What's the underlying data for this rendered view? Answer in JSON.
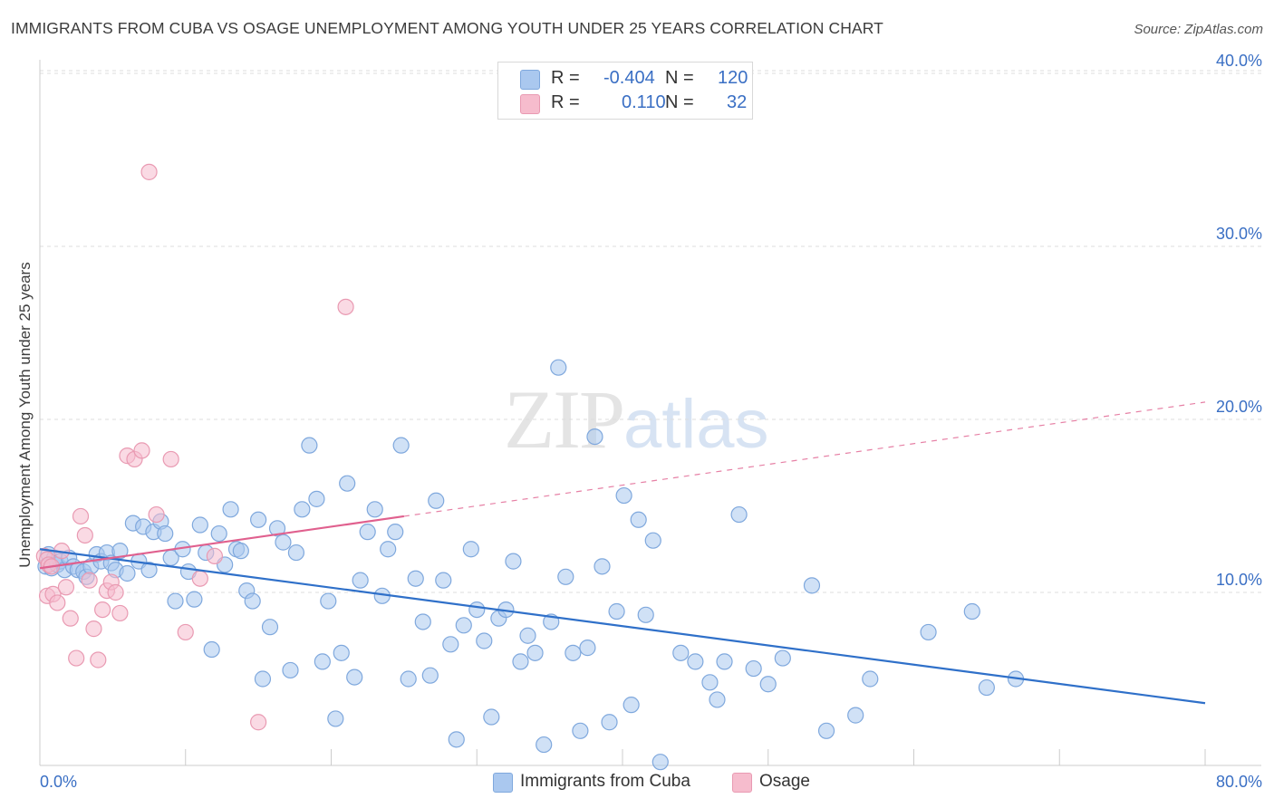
{
  "header": {
    "title": "IMMIGRANTS FROM CUBA VS OSAGE UNEMPLOYMENT AMONG YOUTH UNDER 25 YEARS CORRELATION CHART",
    "source": "Source: ZipAtlas.com"
  },
  "watermark": {
    "zip": "ZIP",
    "atlas": "atlas"
  },
  "legend": {
    "r_label": "R =",
    "n_label": "N =",
    "rows": [
      {
        "r": "-0.404",
        "n": "120"
      },
      {
        "r": "0.110",
        "n": "32"
      }
    ]
  },
  "chart_data": {
    "type": "scatter",
    "title": "IMMIGRANTS FROM CUBA VS OSAGE UNEMPLOYMENT AMONG YOUTH UNDER 25 YEARS CORRELATION CHART",
    "xlabel": "",
    "ylabel": "Unemployment Among Youth under 25 years",
    "xlim": [
      0,
      80
    ],
    "ylim": [
      0,
      42
    ],
    "x_tick_labels": [
      "0.0%",
      "80.0%"
    ],
    "y_ticks": [
      10,
      20,
      30,
      40
    ],
    "y_tick_labels": [
      "10.0%",
      "20.0%",
      "30.0%",
      "40.0%"
    ],
    "grid": true,
    "colors": {
      "cuba_fill": "#aac8ef",
      "cuba_stroke": "#7fa8dd",
      "cuba_line": "#2f70c9",
      "osage_fill": "#f6bccd",
      "osage_stroke": "#e99ab2",
      "osage_line": "#e0608e",
      "tick_label": "#3a6fc4"
    },
    "series": [
      {
        "name": "Immigrants from Cuba",
        "trend": {
          "x": [
            0,
            80
          ],
          "y": [
            12.5,
            3.6
          ],
          "dashed_from": null
        },
        "points": [
          [
            0.4,
            11.5
          ],
          [
            0.6,
            12.2
          ],
          [
            0.8,
            11.4
          ],
          [
            1.0,
            12.0
          ],
          [
            1.2,
            11.6
          ],
          [
            1.4,
            11.8
          ],
          [
            1.7,
            11.3
          ],
          [
            2.0,
            12.0
          ],
          [
            2.3,
            11.5
          ],
          [
            2.6,
            11.3
          ],
          [
            3.0,
            11.2
          ],
          [
            3.2,
            10.9
          ],
          [
            3.5,
            11.5
          ],
          [
            3.9,
            12.2
          ],
          [
            4.2,
            11.8
          ],
          [
            4.6,
            12.3
          ],
          [
            4.9,
            11.7
          ],
          [
            5.2,
            11.3
          ],
          [
            5.5,
            12.4
          ],
          [
            6.0,
            11.1
          ],
          [
            6.4,
            14.0
          ],
          [
            6.8,
            11.8
          ],
          [
            7.1,
            13.8
          ],
          [
            7.5,
            11.3
          ],
          [
            7.8,
            13.5
          ],
          [
            8.3,
            14.1
          ],
          [
            8.6,
            13.4
          ],
          [
            9.0,
            12.0
          ],
          [
            9.3,
            9.5
          ],
          [
            9.8,
            12.5
          ],
          [
            10.2,
            11.2
          ],
          [
            10.6,
            9.6
          ],
          [
            11.0,
            13.9
          ],
          [
            11.4,
            12.3
          ],
          [
            11.8,
            6.7
          ],
          [
            12.3,
            13.4
          ],
          [
            12.7,
            11.6
          ],
          [
            13.1,
            14.8
          ],
          [
            13.5,
            12.5
          ],
          [
            13.8,
            12.4
          ],
          [
            14.2,
            10.1
          ],
          [
            14.6,
            9.5
          ],
          [
            15.0,
            14.2
          ],
          [
            15.3,
            5.0
          ],
          [
            15.8,
            8.0
          ],
          [
            16.3,
            13.7
          ],
          [
            16.7,
            12.9
          ],
          [
            17.2,
            5.5
          ],
          [
            17.6,
            12.3
          ],
          [
            18.0,
            14.8
          ],
          [
            18.5,
            18.5
          ],
          [
            19.0,
            15.4
          ],
          [
            19.4,
            6.0
          ],
          [
            19.8,
            9.5
          ],
          [
            20.3,
            2.7
          ],
          [
            20.7,
            6.5
          ],
          [
            21.1,
            16.3
          ],
          [
            21.6,
            5.1
          ],
          [
            22.0,
            10.7
          ],
          [
            22.5,
            13.5
          ],
          [
            23.0,
            14.8
          ],
          [
            23.5,
            9.8
          ],
          [
            23.9,
            12.5
          ],
          [
            24.4,
            13.5
          ],
          [
            24.8,
            18.5
          ],
          [
            25.3,
            5.0
          ],
          [
            25.8,
            10.8
          ],
          [
            26.3,
            8.3
          ],
          [
            26.8,
            5.2
          ],
          [
            27.2,
            15.3
          ],
          [
            27.7,
            10.7
          ],
          [
            28.2,
            7.0
          ],
          [
            28.6,
            1.5
          ],
          [
            29.1,
            8.1
          ],
          [
            29.6,
            12.5
          ],
          [
            30.0,
            9.0
          ],
          [
            30.5,
            7.2
          ],
          [
            31.0,
            2.8
          ],
          [
            31.5,
            8.5
          ],
          [
            32.0,
            9.0
          ],
          [
            32.5,
            11.8
          ],
          [
            33.0,
            6.0
          ],
          [
            33.5,
            7.5
          ],
          [
            34.0,
            6.5
          ],
          [
            34.6,
            1.2
          ],
          [
            35.1,
            8.3
          ],
          [
            35.6,
            23.0
          ],
          [
            36.1,
            10.9
          ],
          [
            36.6,
            6.5
          ],
          [
            37.1,
            2.0
          ],
          [
            37.6,
            6.8
          ],
          [
            38.1,
            19.0
          ],
          [
            38.6,
            11.5
          ],
          [
            39.1,
            2.5
          ],
          [
            39.6,
            8.9
          ],
          [
            40.1,
            15.6
          ],
          [
            40.6,
            3.5
          ],
          [
            41.1,
            14.2
          ],
          [
            41.6,
            8.7
          ],
          [
            42.1,
            13.0
          ],
          [
            42.6,
            0.2
          ],
          [
            44.0,
            6.5
          ],
          [
            45.0,
            6.0
          ],
          [
            46.0,
            4.8
          ],
          [
            46.5,
            3.8
          ],
          [
            47.0,
            6.0
          ],
          [
            48.0,
            14.5
          ],
          [
            49.0,
            5.6
          ],
          [
            50.0,
            4.7
          ],
          [
            51.0,
            6.2
          ],
          [
            53.0,
            10.4
          ],
          [
            54.0,
            2.0
          ],
          [
            56.0,
            2.9
          ],
          [
            57.0,
            5.0
          ],
          [
            61.0,
            7.7
          ],
          [
            64.0,
            8.9
          ],
          [
            65.0,
            4.5
          ],
          [
            67.0,
            5.0
          ]
        ]
      },
      {
        "name": "Osage",
        "trend": {
          "x": [
            0,
            25,
            80
          ],
          "y": [
            11.4,
            14.4,
            21.0
          ],
          "dashed_from": 25
        },
        "points": [
          [
            0.3,
            12.1
          ],
          [
            0.5,
            11.9
          ],
          [
            0.6,
            11.6
          ],
          [
            0.8,
            11.5
          ],
          [
            0.5,
            9.8
          ],
          [
            0.9,
            9.9
          ],
          [
            1.2,
            9.4
          ],
          [
            1.5,
            12.4
          ],
          [
            1.8,
            10.3
          ],
          [
            2.1,
            8.5
          ],
          [
            2.5,
            6.2
          ],
          [
            2.8,
            14.4
          ],
          [
            3.1,
            13.3
          ],
          [
            3.4,
            10.7
          ],
          [
            3.7,
            7.9
          ],
          [
            4.0,
            6.1
          ],
          [
            4.3,
            9.0
          ],
          [
            4.6,
            10.1
          ],
          [
            4.9,
            10.6
          ],
          [
            5.2,
            10.0
          ],
          [
            5.5,
            8.8
          ],
          [
            6.0,
            17.9
          ],
          [
            6.5,
            17.7
          ],
          [
            7.0,
            18.2
          ],
          [
            7.5,
            34.3
          ],
          [
            8.0,
            14.5
          ],
          [
            9.0,
            17.7
          ],
          [
            10.0,
            7.7
          ],
          [
            11.0,
            10.8
          ],
          [
            12.0,
            12.1
          ],
          [
            15.0,
            2.5
          ],
          [
            21.0,
            26.5
          ]
        ]
      }
    ]
  }
}
